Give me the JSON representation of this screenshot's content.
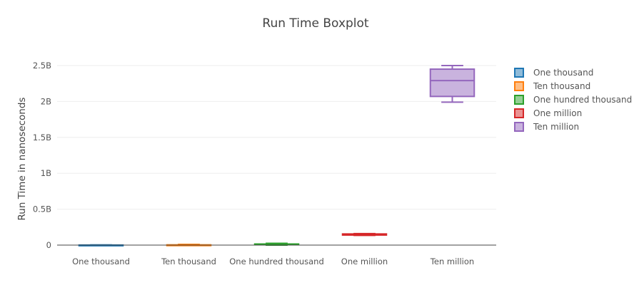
{
  "chart_data": {
    "type": "box",
    "title": "Run Time Boxplot",
    "xlabel": "",
    "ylabel": "Run Time in nanoseconds",
    "ylim": [
      0,
      2500000000.0
    ],
    "yticks": [
      0,
      500000000.0,
      1000000000.0,
      1500000000.0,
      2000000000.0,
      2500000000.0
    ],
    "ytick_labels": [
      "0",
      "0.5B",
      "1B",
      "1.5B",
      "2B",
      "2.5B"
    ],
    "grid": true,
    "legend_position": "right",
    "categories": [
      "One thousand",
      "Ten thousand",
      "One hundred thousand",
      "One million",
      "Ten million"
    ],
    "series": [
      {
        "name": "One thousand",
        "color": "#1f77b4",
        "min": 0,
        "q1": 0,
        "median": 500000,
        "q3": 1000000,
        "max": 2000000
      },
      {
        "name": "Ten thousand",
        "color": "#ff7f0e",
        "min": 0,
        "q1": 0,
        "median": 1000000,
        "q3": 3000000,
        "max": 10000000
      },
      {
        "name": "One hundred thousand",
        "color": "#2ca02c",
        "min": 0,
        "q1": 5000000,
        "median": 10000000,
        "q3": 15000000,
        "max": 25000000
      },
      {
        "name": "One million",
        "color": "#d62728",
        "min": 135000000,
        "q1": 140000000,
        "median": 148000000,
        "q3": 155000000,
        "max": 160000000
      },
      {
        "name": "Ten million",
        "color": "#9467bd",
        "min": 1990000000,
        "q1": 2070000000,
        "median": 2290000000,
        "q3": 2450000000,
        "max": 2500000000
      }
    ]
  }
}
